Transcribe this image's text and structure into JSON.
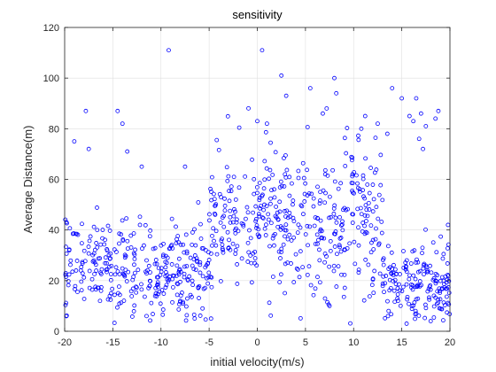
{
  "chart_data": {
    "type": "scatter",
    "title": "sensitivity",
    "xlabel": "initial velocity(m/s)",
    "ylabel": "Average Distance(m)",
    "xlim": [
      -20,
      20
    ],
    "ylim": [
      0,
      120
    ],
    "xticks": [
      -20,
      -15,
      -10,
      -5,
      0,
      5,
      10,
      15,
      20
    ],
    "yticks": [
      0,
      20,
      40,
      60,
      80,
      100,
      120
    ],
    "grid": true,
    "legend": "none",
    "colors": {
      "marker": "#0000ff",
      "grid": "#dfdfdf",
      "axis": "#262626",
      "background": "#ffffff"
    },
    "marker": "open-circle",
    "series": [
      {
        "name": "",
        "points": [
          [
            -9.2,
            111
          ],
          [
            0.5,
            111
          ],
          [
            2.5,
            101
          ],
          [
            3.0,
            93
          ],
          [
            5.5,
            96
          ],
          [
            8.0,
            100
          ],
          [
            8.2,
            94
          ],
          [
            14.0,
            96
          ],
          [
            15.0,
            92
          ],
          [
            16.5,
            92
          ],
          [
            -17.8,
            87
          ],
          [
            -14.5,
            87
          ],
          [
            -14.0,
            82
          ],
          [
            -19.0,
            75
          ],
          [
            -17.5,
            72
          ],
          [
            -13.5,
            71
          ],
          [
            -12.0,
            65
          ],
          [
            -7.5,
            65
          ],
          [
            0.0,
            83
          ],
          [
            1.0,
            82
          ],
          [
            6.8,
            86
          ],
          [
            7.2,
            88
          ],
          [
            11.2,
            85
          ],
          [
            10.8,
            80
          ],
          [
            12.5,
            82
          ],
          [
            15.8,
            85
          ],
          [
            16.2,
            83
          ],
          [
            17.0,
            86
          ],
          [
            17.5,
            81
          ],
          [
            18.8,
            87
          ],
          [
            18.5,
            84
          ],
          [
            13.5,
            78
          ],
          [
            17.2,
            72
          ],
          [
            16.8,
            76
          ],
          [
            19.8,
            42
          ],
          [
            -4.8,
            5
          ],
          [
            -8.0,
            12
          ],
          [
            -11.5,
            6
          ],
          [
            7.5,
            10
          ],
          [
            15.5,
            3
          ],
          [
            18.0,
            4
          ],
          [
            16.5,
            7
          ]
        ]
      }
    ],
    "clusters": [
      {
        "x_range": [
          -20,
          -5
        ],
        "y_mean": 25,
        "y_sd": 9,
        "count": 330
      },
      {
        "x_range": [
          -5,
          13
        ],
        "y_mean": 43,
        "y_sd": 14,
        "count": 420
      },
      {
        "x_range": [
          13,
          20
        ],
        "y_mean": 18,
        "y_sd": 8,
        "count": 170
      }
    ]
  }
}
